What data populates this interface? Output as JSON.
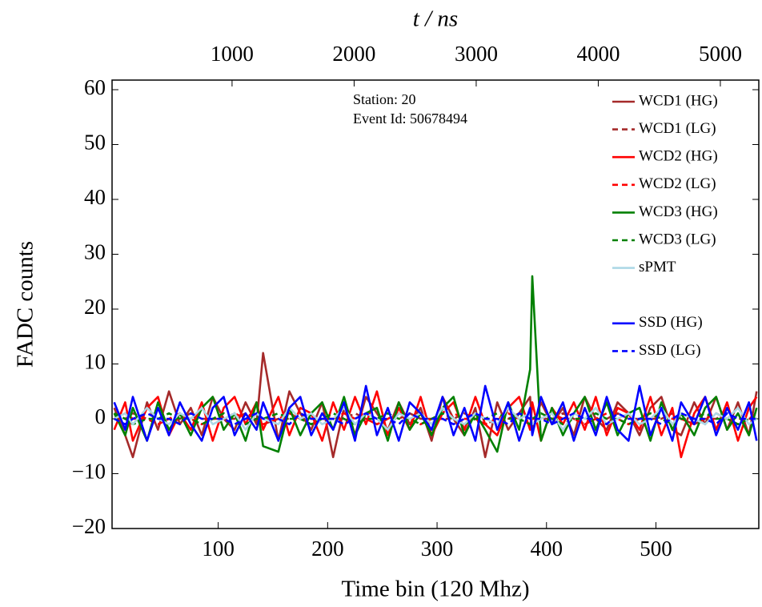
{
  "chart_data": {
    "type": "line",
    "xlabel": "Time bin (120 Mhz)",
    "ylabel": "FADC counts",
    "x2label": "t / ns",
    "annotations": [
      "Station: 20",
      "Event Id: 50678494"
    ],
    "legend": "upper right",
    "grid": false,
    "xlim": [
      3,
      594
    ],
    "xticks": [
      100,
      200,
      300,
      400,
      500
    ],
    "x2lim": [
      17,
      5315
    ],
    "x2ticks": [
      1000,
      2000,
      3000,
      4000,
      5000
    ],
    "ylim": [
      -20,
      61.75
    ],
    "yticks": [
      {
        "value": -20,
        "label": "−20"
      },
      {
        "value": -10,
        "label": "−10"
      },
      0,
      10,
      20,
      30,
      40,
      50,
      60
    ],
    "x": [
      5,
      15,
      22,
      35,
      45,
      55,
      65,
      75,
      85,
      95,
      105,
      115,
      125,
      135,
      141,
      155,
      165,
      175,
      185,
      195,
      205,
      215,
      225,
      235,
      245,
      255,
      265,
      275,
      285,
      295,
      305,
      315,
      325,
      335,
      344,
      355,
      365,
      375,
      385,
      387,
      395,
      405,
      415,
      425,
      435,
      445,
      455,
      465,
      475,
      485,
      495,
      505,
      515,
      523,
      535,
      545,
      555,
      565,
      575,
      585,
      592
    ],
    "series": [
      {
        "name": "WCD1 (HG)",
        "color": "#a52a2a",
        "linestyle": "solid",
        "values": [
          2,
          -3,
          -7,
          3,
          -2,
          5,
          -1,
          2,
          -3,
          4,
          0,
          -2,
          3,
          -1,
          12,
          -4,
          5,
          1,
          -2,
          3,
          -7,
          2,
          -3,
          4,
          1,
          -2,
          3,
          -1,
          2,
          -4,
          4,
          0,
          -3,
          2,
          -7,
          3,
          -2,
          1,
          4,
          -2,
          3,
          -1,
          2,
          -3,
          4,
          0,
          -2,
          3,
          1,
          -3,
          2,
          4,
          -2,
          -3,
          3,
          -1,
          4,
          -2,
          3,
          -3,
          5
        ]
      },
      {
        "name": "WCD1 (LG)",
        "color": "#a52a2a",
        "linestyle": "dashed",
        "values": [
          0,
          0,
          1,
          0,
          -1,
          0,
          0,
          1,
          0,
          0,
          0,
          0,
          1,
          0,
          -1,
          0,
          0,
          1,
          0,
          0,
          0,
          0,
          1,
          0,
          -1,
          0,
          0,
          1,
          0,
          0,
          0,
          0,
          1,
          0,
          -1,
          0,
          0,
          1,
          0,
          0,
          0,
          0,
          1,
          0,
          -1,
          0,
          0,
          1,
          0,
          0,
          0,
          0,
          1,
          0,
          -1,
          0,
          0,
          1,
          0,
          0,
          0
        ]
      },
      {
        "name": "WCD2 (HG)",
        "color": "#ff0000",
        "linestyle": "solid",
        "values": [
          -2,
          3,
          -4,
          2,
          4,
          -3,
          1,
          -2,
          3,
          -4,
          2,
          4,
          -1,
          3,
          -2,
          4,
          -3,
          2,
          1,
          -4,
          3,
          -2,
          4,
          -1,
          5,
          -3,
          2,
          -2,
          4,
          -3,
          1,
          3,
          -2,
          4,
          -1,
          -3,
          2,
          4,
          -2,
          3,
          -4,
          2,
          -1,
          3,
          -2,
          4,
          -3,
          2,
          1,
          -2,
          4,
          -3,
          2,
          -7,
          1,
          4,
          -2,
          3,
          -4,
          2,
          4
        ]
      },
      {
        "name": "WCD2 (LG)",
        "color": "#ff0000",
        "linestyle": "dashed",
        "values": [
          0,
          1,
          0,
          0,
          -1,
          0,
          1,
          0,
          -1,
          0,
          0,
          1,
          0,
          0,
          -1,
          0,
          1,
          0,
          -1,
          0,
          0,
          1,
          0,
          0,
          -1,
          0,
          1,
          0,
          -1,
          0,
          0,
          1,
          0,
          0,
          -1,
          0,
          1,
          0,
          -1,
          0,
          0,
          1,
          0,
          0,
          -1,
          0,
          1,
          0,
          -1,
          0,
          0,
          1,
          0,
          0,
          -1,
          0,
          1,
          0,
          -1,
          0,
          1
        ]
      },
      {
        "name": "WCD3 (HG)",
        "color": "#008000",
        "linestyle": "solid",
        "values": [
          1,
          -3,
          2,
          -4,
          3,
          -2,
          1,
          -3,
          2,
          4,
          -2,
          1,
          -4,
          3,
          -5,
          -6,
          2,
          -3,
          1,
          3,
          -2,
          4,
          -3,
          1,
          2,
          -4,
          3,
          -2,
          1,
          -3,
          2,
          4,
          -3,
          1,
          -2,
          -6,
          3,
          -2,
          9,
          26,
          -4,
          2,
          -3,
          1,
          4,
          -2,
          3,
          -3,
          1,
          2,
          -4,
          3,
          -2,
          1,
          -3,
          2,
          4,
          -2,
          1,
          -3,
          2
        ]
      },
      {
        "name": "WCD3 (LG)",
        "color": "#008000",
        "linestyle": "dashed",
        "values": [
          1,
          0,
          -1,
          0,
          0,
          1,
          0,
          0,
          -1,
          0,
          1,
          0,
          -1,
          0,
          0,
          1,
          0,
          0,
          -1,
          0,
          1,
          0,
          -1,
          0,
          0,
          1,
          0,
          0,
          -1,
          0,
          1,
          0,
          -1,
          0,
          0,
          1,
          0,
          0,
          -1,
          0,
          1,
          0,
          -1,
          0,
          0,
          1,
          0,
          0,
          -1,
          0,
          1,
          0,
          -1,
          0,
          0,
          1,
          0,
          0,
          -1,
          0,
          0
        ]
      },
      {
        "name": "sPMT",
        "color": "#add8e6",
        "linestyle": "solid",
        "values": [
          0,
          1,
          -1,
          2,
          0,
          -1,
          1,
          0,
          2,
          -1,
          0,
          1,
          -2,
          1,
          0,
          -1,
          2,
          0,
          1,
          -1,
          0,
          2,
          -1,
          1,
          0,
          -2,
          1,
          0,
          1,
          -1,
          2,
          0,
          -1,
          1,
          0,
          -1,
          2,
          0,
          1,
          -1,
          0,
          1,
          -2,
          1,
          0,
          2,
          -1,
          0,
          1,
          -1,
          0,
          2,
          -1,
          1,
          0,
          -1,
          1,
          0,
          2,
          -1,
          0
        ]
      },
      {
        "name": "SSD (HG)",
        "color": "#0000ff",
        "linestyle": "solid",
        "values": [
          3,
          -2,
          4,
          -4,
          2,
          -3,
          3,
          -1,
          -4,
          2,
          4,
          -3,
          1,
          -2,
          3,
          -4,
          2,
          4,
          -3,
          1,
          -2,
          3,
          -4,
          6,
          -3,
          2,
          -4,
          3,
          1,
          -2,
          4,
          -3,
          2,
          -4,
          6,
          -2,
          3,
          -4,
          2,
          -3,
          4,
          -1,
          3,
          -4,
          2,
          -3,
          4,
          -2,
          -4,
          6,
          -3,
          2,
          -4,
          3,
          -1,
          4,
          -3,
          2,
          -2,
          3,
          -4
        ]
      },
      {
        "name": "SSD (LG)",
        "color": "#0000ff",
        "linestyle": "dashed",
        "values": [
          0,
          -1,
          0,
          1,
          0,
          0,
          -1,
          1,
          0,
          0,
          0,
          -1,
          0,
          1,
          0,
          0,
          -1,
          1,
          0,
          0,
          0,
          -1,
          0,
          1,
          0,
          0,
          -1,
          1,
          0,
          0,
          0,
          -1,
          0,
          1,
          0,
          0,
          -1,
          1,
          0,
          0,
          0,
          -1,
          0,
          1,
          0,
          0,
          -1,
          1,
          0,
          0,
          0,
          -1,
          0,
          1,
          0,
          0,
          -1,
          1,
          0,
          0,
          0
        ]
      }
    ]
  }
}
